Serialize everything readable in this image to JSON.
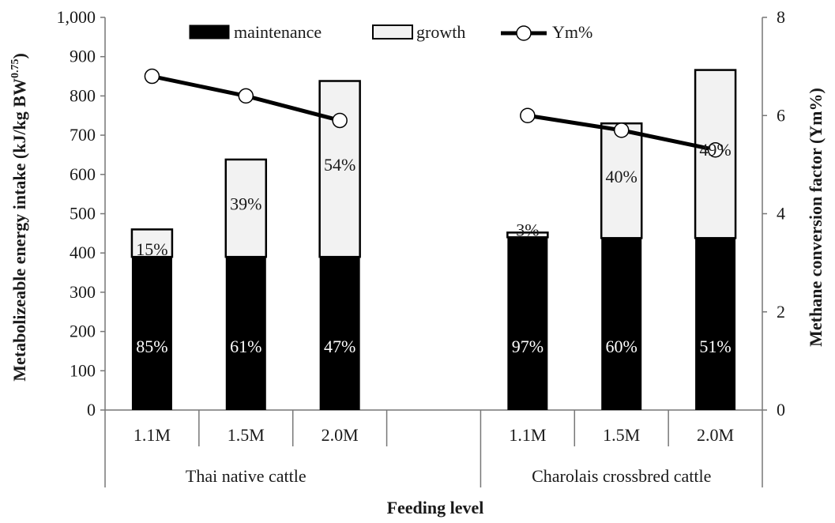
{
  "chart_data": {
    "type": "bar",
    "stacked": true,
    "xlabel": "Feeding level",
    "ylabel_left": "Metabolizeable energy intake (kJ/kg BW",
    "ylabel_left_sup": "0.75",
    "ylabel_left_close": ")",
    "ylabel_right": "Methane conversion factor (Ym%)",
    "ylim_left": [
      0,
      1000
    ],
    "yticks_left": [
      "0",
      "100",
      "200",
      "300",
      "400",
      "500",
      "600",
      "700",
      "800",
      "900",
      "1,000"
    ],
    "ylim_right": [
      0,
      8
    ],
    "yticks_right": [
      "0",
      "2",
      "4",
      "6",
      "8"
    ],
    "groups": [
      {
        "label": "Thai native cattle",
        "categories": [
          "1.1M",
          "1.5M",
          "2.0M"
        ]
      },
      {
        "label": "Charolais crossbred cattle",
        "categories": [
          "1.1M",
          "1.5M",
          "2.0M"
        ]
      }
    ],
    "legend": [
      "maintenance",
      "growth",
      "Ym%"
    ],
    "series": [
      {
        "name": "maintenance",
        "color": "#000000",
        "values": [
          [
            390,
            390,
            390
          ],
          [
            440,
            438,
            438
          ]
        ],
        "labels": [
          [
            "85%",
            "61%",
            "47%"
          ],
          [
            "97%",
            "60%",
            "51%"
          ]
        ]
      },
      {
        "name": "growth",
        "color": "#f2f2f2",
        "values": [
          [
            70,
            248,
            448
          ],
          [
            12,
            292,
            428
          ]
        ],
        "labels": [
          [
            "15%",
            "39%",
            "54%"
          ],
          [
            "3%",
            "40%",
            "49%"
          ]
        ]
      },
      {
        "name": "Ym%",
        "axis": "right",
        "type": "line",
        "values": [
          [
            6.8,
            6.4,
            5.9
          ],
          [
            6.0,
            5.7,
            5.3
          ]
        ]
      }
    ]
  }
}
